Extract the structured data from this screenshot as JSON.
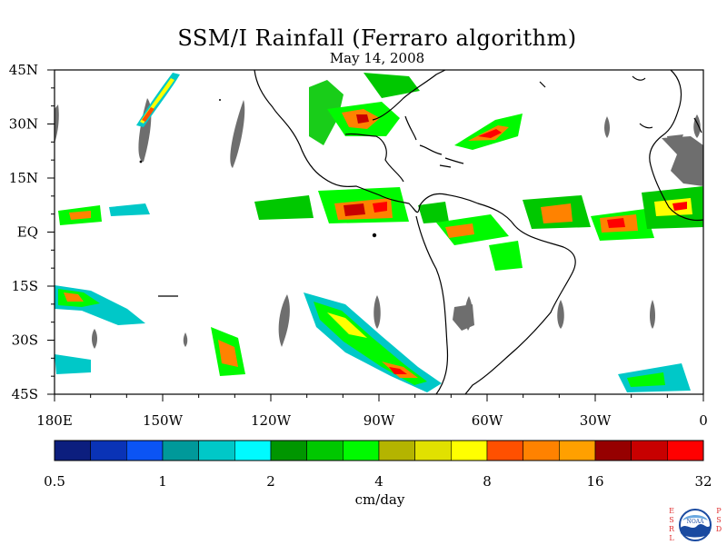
{
  "title": "SSM/I Rainfall (Ferraro algorithm)",
  "date": "May 14, 2008",
  "lat_labels": [
    "45N",
    "30N",
    "15N",
    "EQ",
    "15S",
    "30S",
    "45S"
  ],
  "lon_labels": [
    "180E",
    "150W",
    "120W",
    "90W",
    "60W",
    "30W",
    "0"
  ],
  "colorbar": {
    "unit": "cm/day",
    "tick_labels": [
      "0.5",
      "1",
      "2",
      "4",
      "8",
      "16",
      "32"
    ],
    "colors": [
      "#0c1e7e",
      "#0a33b6",
      "#0b54f4",
      "#00999a",
      "#00c8c8",
      "#00faff",
      "#009600",
      "#00c800",
      "#00fa00",
      "#b4b400",
      "#e1e100",
      "#ffff00",
      "#ff5000",
      "#ff8200",
      "#ffa000",
      "#960000",
      "#c80000",
      "#ff0000"
    ]
  },
  "logo": {
    "left_letters": "ESRL",
    "right_letters": "PSD",
    "badge": "NOAA"
  }
}
